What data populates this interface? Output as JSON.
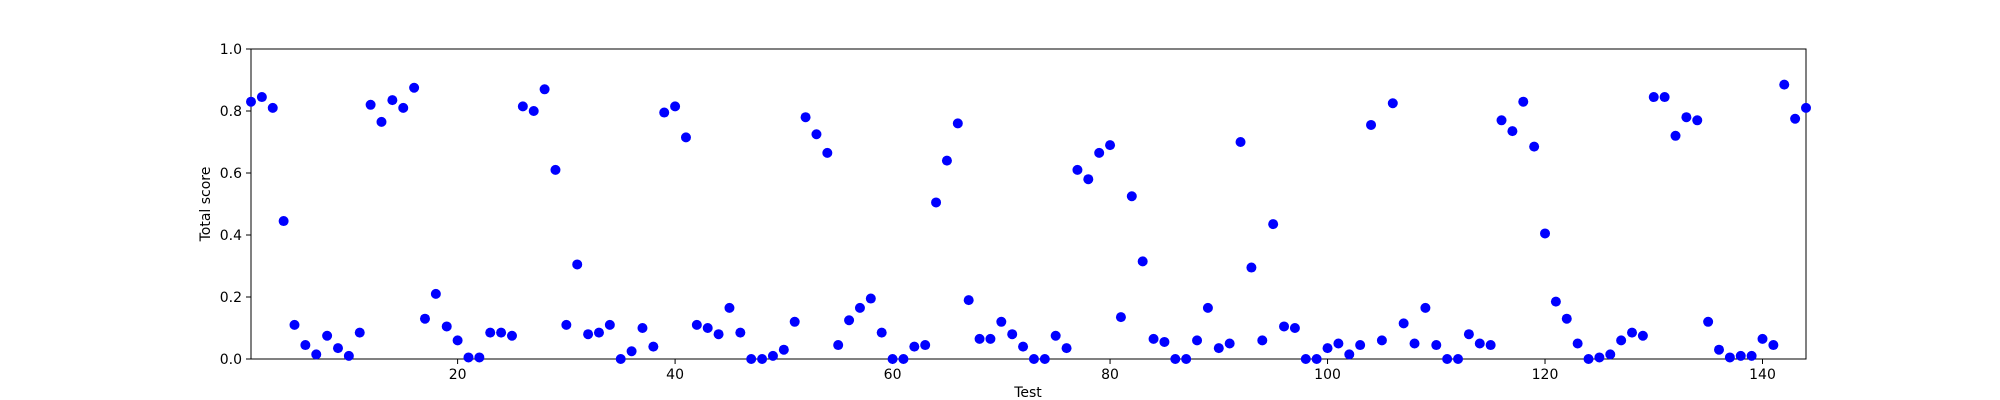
{
  "chart_data": {
    "type": "scatter",
    "title": "",
    "xlabel": "Test",
    "ylabel": "Total score",
    "xlim": [
      1,
      144
    ],
    "ylim": [
      0,
      1.0
    ],
    "x_ticks": [
      20,
      40,
      60,
      80,
      100,
      120,
      140
    ],
    "y_ticks": [
      0.0,
      0.2,
      0.4,
      0.6,
      0.8,
      1.0
    ],
    "y_tick_labels": [
      "0.0",
      "0.2",
      "0.4",
      "0.6",
      "0.8",
      "1.0"
    ],
    "marker_color": "#0000ff",
    "grid": false,
    "legend": "none",
    "series": [
      {
        "x": [
          1,
          2,
          3,
          4,
          5,
          6,
          7,
          8,
          9,
          10,
          11,
          12,
          13,
          14,
          15,
          16,
          17,
          18,
          19,
          20,
          21,
          22,
          23,
          24,
          25,
          26,
          27,
          28,
          29,
          30,
          31,
          32,
          33,
          34,
          35,
          36,
          37,
          38,
          39,
          40,
          41,
          42,
          43,
          44,
          45,
          46,
          47,
          48,
          49,
          50,
          51,
          52,
          53,
          54,
          55,
          56,
          57,
          58,
          59,
          60,
          61,
          62,
          63,
          64,
          65,
          66,
          67,
          68,
          69,
          70,
          71,
          72,
          73,
          74,
          75,
          76,
          77,
          78,
          79,
          80,
          81,
          82,
          83,
          84,
          85,
          86,
          87,
          88,
          89,
          90,
          91,
          92,
          93,
          94,
          95,
          96,
          97,
          98,
          99,
          100,
          101,
          102,
          103,
          104,
          105,
          106,
          107,
          108,
          109,
          110,
          111,
          112,
          113,
          114,
          115,
          116,
          117,
          118,
          119,
          120,
          121,
          122,
          123,
          124,
          125,
          126,
          127,
          128,
          129,
          130,
          131,
          132,
          133,
          134,
          135,
          136,
          137,
          138,
          139,
          140,
          141,
          142,
          143,
          144
        ],
        "y": [
          0.83,
          0.845,
          0.81,
          0.445,
          0.11,
          0.045,
          0.015,
          0.075,
          0.035,
          0.01,
          0.085,
          0.82,
          0.765,
          0.835,
          0.81,
          0.875,
          0.13,
          0.21,
          0.105,
          0.06,
          0.005,
          0.005,
          0.085,
          0.085,
          0.075,
          0.815,
          0.8,
          0.87,
          0.61,
          0.11,
          0.305,
          0.08,
          0.085,
          0.11,
          0.0,
          0.025,
          0.1,
          0.04,
          0.795,
          0.815,
          0.715,
          0.11,
          0.1,
          0.08,
          0.165,
          0.085,
          0.0,
          0.0,
          0.01,
          0.03,
          0.12,
          0.78,
          0.725,
          0.665,
          0.045,
          0.125,
          0.165,
          0.195,
          0.085,
          0.0,
          0.0,
          0.04,
          0.045,
          0.505,
          0.64,
          0.76,
          0.19,
          0.065,
          0.065,
          0.12,
          0.08,
          0.04,
          0.0,
          0.0,
          0.075,
          0.035,
          0.61,
          0.58,
          0.665,
          0.69,
          0.135,
          0.525,
          0.315,
          0.065,
          0.055,
          0.0,
          0.0,
          0.06,
          0.165,
          0.035,
          0.05,
          0.7,
          0.295,
          0.06,
          0.435,
          0.105,
          0.1,
          0.0,
          0.0,
          0.035,
          0.05,
          0.015,
          0.045,
          0.755,
          0.06,
          0.825,
          0.115,
          0.05,
          0.165,
          0.045,
          0.0,
          0.0,
          0.08,
          0.05,
          0.045,
          0.77,
          0.735,
          0.83,
          0.685,
          0.405,
          0.185,
          0.13,
          0.05,
          0.0,
          0.005,
          0.015,
          0.06,
          0.085,
          0.075,
          0.845,
          0.845,
          0.72,
          0.78,
          0.77,
          0.12,
          0.03,
          0.005,
          0.01,
          0.01,
          0.065,
          0.045,
          0.885,
          0.775,
          0.81
        ]
      }
    ]
  }
}
